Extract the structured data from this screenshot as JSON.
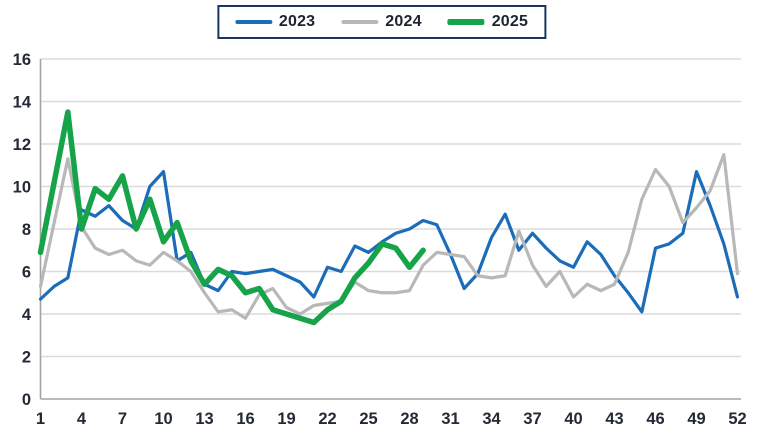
{
  "chart_data": {
    "type": "line",
    "title": "",
    "xlabel": "",
    "ylabel": "",
    "x_unit": "week-number",
    "x_range": [
      1,
      52
    ],
    "x_label_ticks": [
      1,
      4,
      7,
      10,
      13,
      16,
      19,
      22,
      25,
      28,
      31,
      34,
      37,
      40,
      43,
      46,
      49,
      52
    ],
    "y_ticks": [
      0,
      2,
      4,
      6,
      8,
      10,
      12,
      14,
      16
    ],
    "ylim": [
      0,
      16
    ],
    "grid": true,
    "legend_position": "top-center",
    "series": [
      {
        "name": "2023",
        "color": "#1b6cb9",
        "stroke_width": 3.2,
        "swatch_height": 4,
        "values": [
          4.7,
          5.3,
          5.7,
          8.9,
          8.6,
          9.1,
          8.4,
          8.0,
          10.0,
          10.7,
          6.5,
          6.9,
          5.4,
          5.1,
          6.0,
          5.9,
          6.0,
          6.1,
          5.8,
          5.5,
          4.8,
          6.2,
          6.0,
          7.2,
          6.9,
          7.4,
          7.8,
          8.0,
          8.4,
          8.2,
          6.8,
          5.2,
          5.9,
          7.6,
          8.7,
          7.0,
          7.8,
          7.1,
          6.5,
          6.2,
          7.4,
          6.8,
          5.8,
          5.0,
          4.1,
          7.1,
          7.3,
          7.8,
          10.7,
          9.1,
          7.3,
          4.8
        ]
      },
      {
        "name": "2024",
        "color": "#b8b8b8",
        "stroke_width": 3.2,
        "swatch_height": 4,
        "values": [
          5.3,
          8.3,
          11.3,
          8.1,
          7.1,
          6.8,
          7.0,
          6.5,
          6.3,
          6.9,
          6.5,
          6.0,
          5.0,
          4.1,
          4.2,
          3.8,
          4.9,
          5.2,
          4.3,
          4.0,
          4.4,
          4.5,
          4.6,
          5.5,
          5.1,
          5.0,
          5.0,
          5.1,
          6.3,
          6.9,
          6.8,
          6.7,
          5.8,
          5.7,
          5.8,
          7.9,
          6.3,
          5.3,
          6.0,
          4.8,
          5.4,
          5.1,
          5.4,
          6.9,
          9.4,
          10.8,
          10.0,
          8.3,
          9.0,
          9.8,
          11.5,
          5.9
        ]
      },
      {
        "name": "2025",
        "color": "#17a34a",
        "stroke_width": 5.5,
        "swatch_height": 6,
        "values": [
          6.9,
          10.2,
          13.5,
          8.0,
          9.9,
          9.4,
          10.5,
          8.0,
          9.4,
          7.4,
          8.3,
          6.5,
          5.4,
          6.1,
          5.8,
          5.0,
          5.2,
          4.2,
          4.0,
          3.8,
          3.6,
          4.2,
          4.6,
          5.7,
          6.4,
          7.3,
          7.1,
          6.2,
          7.0
        ]
      }
    ],
    "style": {
      "gridline_color": "#dbdbdb",
      "axis_color": "#a3a3a3",
      "tick_text_color": "#242a35",
      "legend_border_color": "#17375e",
      "background_color": "#ffffff"
    }
  }
}
